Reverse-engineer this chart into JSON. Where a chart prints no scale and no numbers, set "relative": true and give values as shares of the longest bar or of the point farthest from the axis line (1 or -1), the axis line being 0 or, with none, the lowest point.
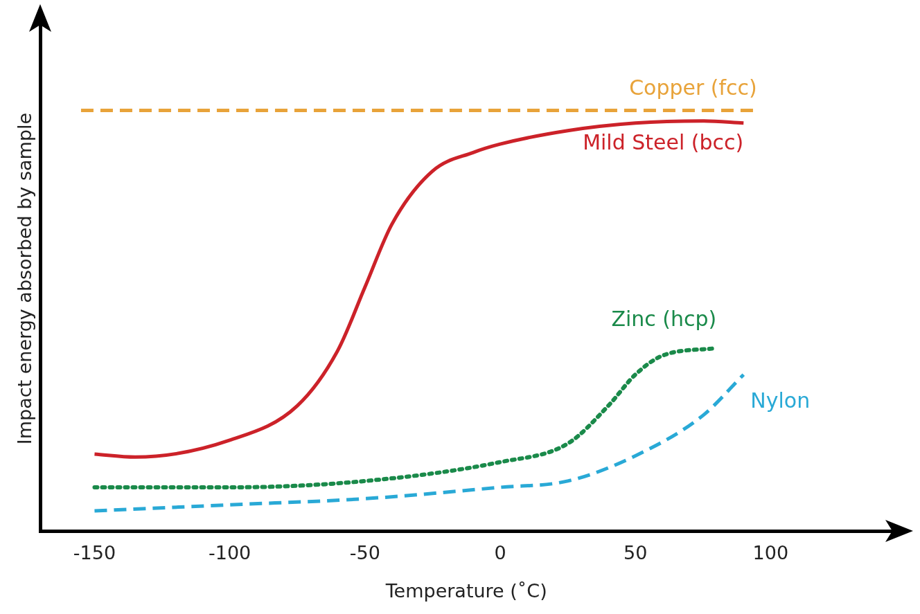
{
  "chart_data": {
    "type": "line",
    "xlabel": "Temperature (˚C)",
    "ylabel": "Impact energy absorbed by sample",
    "relative": true,
    "tick_labels": "x",
    "xlim": [
      -170,
      145
    ],
    "xticks": [
      -150,
      -100,
      -50,
      0,
      50,
      100
    ],
    "grid": false,
    "legend": false,
    "marker": "none",
    "series": [
      {
        "name": "Copper (fcc)",
        "color": "#e8a33a",
        "line_style": "dashed",
        "x": [
          -155,
          95
        ],
        "values": [
          1,
          1
        ]
      },
      {
        "name": "Mild Steel (bcc)",
        "color": "#cc2229",
        "line_style": "solid",
        "x": [
          -150,
          -135,
          -100,
          -75,
          -60,
          -50,
          -40,
          -25,
          -10,
          0,
          25,
          50,
          75,
          90
        ],
        "values": [
          0.183,
          0.176,
          0.216,
          0.298,
          0.43,
          0.58,
          0.73,
          0.856,
          0.9,
          0.92,
          0.952,
          0.97,
          0.975,
          0.97
        ]
      },
      {
        "name": "Zinc (hcp)",
        "color": "#1a8a4a",
        "line_style": "dotted",
        "x": [
          -150,
          -100,
          -50,
          0,
          25,
          40,
          50,
          60,
          80
        ],
        "values": [
          0.104,
          0.104,
          0.119,
          0.164,
          0.208,
          0.298,
          0.372,
          0.417,
          0.435
        ]
      },
      {
        "name": "Nylon",
        "color": "#29a9d6",
        "line_style": "dashed",
        "x": [
          -150,
          -100,
          -50,
          0,
          25,
          50,
          75,
          90
        ],
        "values": [
          0.048,
          0.0625,
          0.077,
          0.104,
          0.119,
          0.179,
          0.275,
          0.372
        ]
      }
    ]
  }
}
